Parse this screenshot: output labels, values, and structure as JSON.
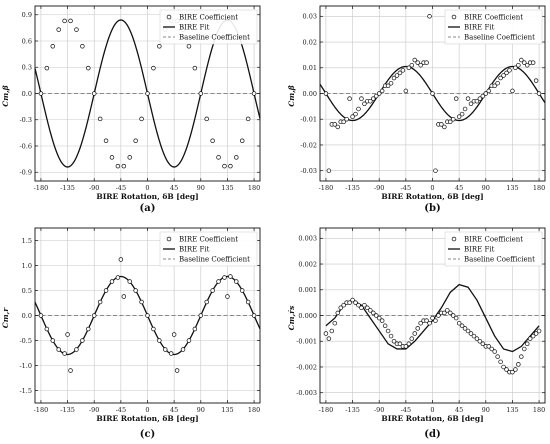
{
  "figure": {
    "panel_letters": [
      "(a)",
      "(b)",
      "(c)",
      "(d)"
    ]
  },
  "chart_data": [
    {
      "type": "line",
      "panel": "(a)",
      "xlabel": "BIRE Rotation, δB [deg]",
      "ylabel": "Cm,β",
      "xlim": [
        -190,
        190
      ],
      "ylim": [
        -1.0,
        1.0
      ],
      "xticks": [
        -180,
        -135,
        -90,
        -45,
        0,
        45,
        90,
        135,
        180
      ],
      "yticks": [
        -0.9,
        -0.6,
        -0.3,
        0.0,
        0.3,
        0.6,
        0.9
      ],
      "ytick_labels": [
        "-0.9",
        "-0.6",
        "-0.3",
        "0.0",
        "0.3",
        "0.6",
        "0.9"
      ],
      "grid": true,
      "legend_position": "top-right",
      "legend": [
        "BIRE Coefficient",
        "BIRE Fit",
        "Baseline Coefficient"
      ],
      "baseline": 0.0,
      "fit": {
        "form": "A*sin(2*(x+phi))+C",
        "amplitude": 0.84,
        "phase_deg": 0,
        "offset": 0.0,
        "sign": -1
      },
      "series": [
        {
          "name": "BIRE Coefficient",
          "x": [
            -180,
            -170,
            -160,
            -150,
            -140,
            -130,
            -120,
            -110,
            -100,
            -90,
            -80,
            -70,
            -60,
            -50,
            -40,
            -30,
            -20,
            -10,
            0,
            10,
            20,
            30,
            40,
            50,
            60,
            70,
            80,
            90,
            100,
            110,
            120,
            130,
            140,
            150,
            160,
            170,
            180
          ],
          "y": [
            0.0,
            0.29,
            0.54,
            0.73,
            0.83,
            0.83,
            0.73,
            0.54,
            0.29,
            0.0,
            -0.29,
            -0.54,
            -0.73,
            -0.83,
            -0.83,
            -0.73,
            -0.54,
            -0.29,
            0.0,
            0.29,
            0.54,
            0.73,
            0.83,
            0.83,
            0.73,
            0.54,
            0.29,
            0.0,
            -0.29,
            -0.54,
            -0.73,
            -0.83,
            -0.83,
            -0.73,
            -0.54,
            -0.29,
            0.0
          ]
        }
      ]
    },
    {
      "type": "line",
      "panel": "(b)",
      "xlabel": "BIRE Rotation, δB [deg]",
      "ylabel": "Cm,β̇",
      "xlim": [
        -190,
        190
      ],
      "ylim": [
        -0.034,
        0.034
      ],
      "xticks": [
        -180,
        -135,
        -90,
        -45,
        0,
        45,
        90,
        135,
        180
      ],
      "yticks": [
        -0.03,
        -0.02,
        -0.01,
        0.0,
        0.01,
        0.02,
        0.03
      ],
      "ytick_labels": [
        "-0.03",
        "-0.02",
        "-0.01",
        "0.00",
        "0.01",
        "0.02",
        "0.03"
      ],
      "grid": true,
      "legend_position": "top-right",
      "legend": [
        "BIRE Coefficient",
        "BIRE Fit",
        "Baseline Coefficient"
      ],
      "baseline": 0.0,
      "fit": {
        "amplitude": 0.0105,
        "peaks_deg": [
          -45,
          135
        ],
        "troughs_deg": [
          45,
          -135
        ]
      },
      "series": [
        {
          "name": "BIRE Coefficient",
          "x": [
            -180,
            -175,
            -170,
            -165,
            -160,
            -155,
            -150,
            -145,
            -140,
            -135,
            -130,
            -125,
            -120,
            -115,
            -110,
            -105,
            -100,
            -95,
            -90,
            -85,
            -80,
            -75,
            -70,
            -65,
            -60,
            -55,
            -50,
            -45,
            -40,
            -35,
            -30,
            -25,
            -20,
            -15,
            -10,
            -5,
            0,
            5,
            10,
            15,
            20,
            25,
            30,
            35,
            40,
            45,
            50,
            55,
            60,
            65,
            70,
            75,
            80,
            85,
            90,
            95,
            100,
            105,
            110,
            115,
            120,
            125,
            130,
            135,
            140,
            145,
            150,
            155,
            160,
            165,
            170,
            175,
            180
          ],
          "y": [
            0.0,
            -0.03,
            -0.012,
            -0.012,
            -0.013,
            -0.011,
            -0.011,
            -0.01,
            -0.002,
            -0.009,
            -0.008,
            -0.006,
            -0.002,
            -0.004,
            -0.003,
            -0.003,
            -0.002,
            -0.001,
            0.0,
            0.001,
            0.003,
            0.003,
            0.004,
            0.006,
            0.007,
            0.008,
            0.009,
            0.001,
            0.01,
            0.011,
            0.013,
            0.012,
            0.011,
            0.012,
            0.012,
            0.03,
            0.0,
            -0.03,
            -0.012,
            -0.012,
            -0.013,
            -0.011,
            -0.011,
            -0.01,
            -0.002,
            -0.009,
            -0.008,
            -0.006,
            -0.002,
            -0.004,
            -0.003,
            -0.003,
            -0.002,
            -0.001,
            0.0,
            0.001,
            0.003,
            0.003,
            0.004,
            0.006,
            0.007,
            0.008,
            0.009,
            0.001,
            0.01,
            0.011,
            0.013,
            0.012,
            0.011,
            0.012,
            0.012,
            0.005,
            0.0
          ]
        }
      ]
    },
    {
      "type": "line",
      "panel": "(c)",
      "xlabel": "BIRE Rotation, δB [deg]",
      "ylabel": "Cm,r",
      "xlim": [
        -190,
        190
      ],
      "ylim": [
        -1.75,
        1.75
      ],
      "xticks": [
        -180,
        -135,
        -90,
        -45,
        0,
        45,
        90,
        135,
        180
      ],
      "yticks": [
        -1.5,
        -1.0,
        -0.5,
        0.0,
        0.5,
        1.0,
        1.5
      ],
      "ytick_labels": [
        "-1.5",
        "-1.0",
        "-0.5",
        "0.0",
        "0.5",
        "1.0",
        "1.5"
      ],
      "grid": true,
      "legend_position": "top-right",
      "legend": [
        "BIRE Coefficient",
        "BIRE Fit",
        "Baseline Coefficient"
      ],
      "baseline": 0.0,
      "fit": {
        "amplitude": 0.78,
        "peaks_deg": [
          -45,
          135
        ],
        "troughs_deg": [
          45,
          -135
        ]
      },
      "series": [
        {
          "name": "BIRE Coefficient",
          "x": [
            -180,
            -170,
            -160,
            -150,
            -140,
            -135,
            -130,
            -120,
            -110,
            -100,
            -90,
            -80,
            -70,
            -60,
            -50,
            -45,
            -40,
            -30,
            -20,
            -10,
            0,
            10,
            20,
            30,
            40,
            45,
            50,
            60,
            70,
            80,
            90,
            100,
            110,
            120,
            130,
            135,
            140,
            150,
            160,
            170,
            180
          ],
          "y": [
            0.0,
            -0.27,
            -0.5,
            -0.68,
            -0.76,
            -0.38,
            -1.1,
            -0.68,
            -0.5,
            -0.27,
            0.0,
            0.27,
            0.5,
            0.68,
            0.76,
            1.12,
            0.38,
            0.68,
            0.5,
            0.27,
            0.0,
            -0.27,
            -0.5,
            -0.68,
            -0.76,
            -0.38,
            -1.1,
            -0.68,
            -0.5,
            -0.27,
            0.0,
            0.27,
            0.5,
            0.68,
            0.76,
            0.38,
            0.78,
            0.68,
            0.5,
            0.27,
            0.0
          ]
        }
      ]
    },
    {
      "type": "line",
      "panel": "(d)",
      "xlabel": "BIRE Rotation, δB [deg]",
      "ylabel": "Cm,ṙs",
      "xlim": [
        -190,
        190
      ],
      "ylim": [
        -0.0034,
        0.0034
      ],
      "xticks": [
        -180,
        -135,
        -90,
        -45,
        0,
        45,
        90,
        135,
        180
      ],
      "yticks": [
        -0.003,
        -0.002,
        -0.001,
        0.0,
        0.001,
        0.002,
        0.003
      ],
      "ytick_labels": [
        "-0.003",
        "-0.002",
        "-0.001",
        "0.000",
        "0.001",
        "0.002",
        "0.003"
      ],
      "grid": true,
      "legend_position": "top-right",
      "legend": [
        "BIRE Coefficient",
        "BIRE Fit",
        "Baseline Coefficient"
      ],
      "baseline": 0.0,
      "series": [
        {
          "name": "BIRE Coefficient",
          "x": [
            -180,
            -175,
            -170,
            -165,
            -160,
            -155,
            -150,
            -145,
            -140,
            -135,
            -130,
            -125,
            -120,
            -115,
            -110,
            -105,
            -100,
            -95,
            -90,
            -85,
            -80,
            -75,
            -70,
            -65,
            -60,
            -55,
            -50,
            -45,
            -40,
            -35,
            -30,
            -25,
            -20,
            -15,
            -10,
            -5,
            0,
            5,
            10,
            15,
            20,
            25,
            30,
            35,
            40,
            45,
            50,
            55,
            60,
            65,
            70,
            75,
            80,
            85,
            90,
            95,
            100,
            105,
            110,
            115,
            120,
            125,
            130,
            135,
            140,
            145,
            150,
            155,
            160,
            165,
            170,
            175,
            180
          ],
          "y": [
            -0.0007,
            -0.0009,
            -0.0006,
            -0.0003,
            0.0001,
            0.0003,
            0.0004,
            0.0005,
            0.0005,
            0.0006,
            0.0005,
            0.0004,
            0.0003,
            0.0004,
            0.0003,
            0.0002,
            0.0001,
            0.0,
            -0.0001,
            -0.0002,
            -0.0004,
            -0.0006,
            -0.0008,
            -0.001,
            -0.0011,
            -0.0011,
            -0.0012,
            -0.0012,
            -0.0011,
            -0.0009,
            -0.0007,
            -0.0005,
            -0.0003,
            -0.0002,
            -0.0002,
            -0.0003,
            -0.0001,
            -0.0002,
            0.0,
            0.0001,
            0.0001,
            0.0002,
            0.0001,
            0.0,
            -0.0001,
            -0.0003,
            -0.0004,
            -0.0005,
            -0.0006,
            -0.0007,
            -0.0008,
            -0.0009,
            -0.001,
            -0.0011,
            -0.0012,
            -0.0012,
            -0.0013,
            -0.0014,
            -0.0016,
            -0.0018,
            -0.002,
            -0.0021,
            -0.0022,
            -0.0022,
            -0.0021,
            -0.0019,
            -0.0016,
            -0.0013,
            -0.0011,
            -0.0009,
            -0.0008,
            -0.0007,
            -0.0006
          ]
        },
        {
          "name": "BIRE Fit",
          "x": [
            -180,
            -165,
            -150,
            -135,
            -120,
            -105,
            -90,
            -75,
            -60,
            -45,
            -30,
            -15,
            0,
            15,
            30,
            45,
            60,
            75,
            90,
            105,
            120,
            135,
            150,
            165,
            180
          ],
          "y": [
            -0.0004,
            -0.0001,
            0.0004,
            0.0006,
            0.0004,
            -0.0001,
            -0.0006,
            -0.0011,
            -0.0013,
            -0.0013,
            -0.001,
            -0.0006,
            -0.0002,
            0.0003,
            0.0009,
            0.0012,
            0.0011,
            0.0006,
            -0.0001,
            -0.0008,
            -0.0013,
            -0.0014,
            -0.0012,
            -0.0008,
            -0.0004
          ]
        }
      ]
    }
  ]
}
